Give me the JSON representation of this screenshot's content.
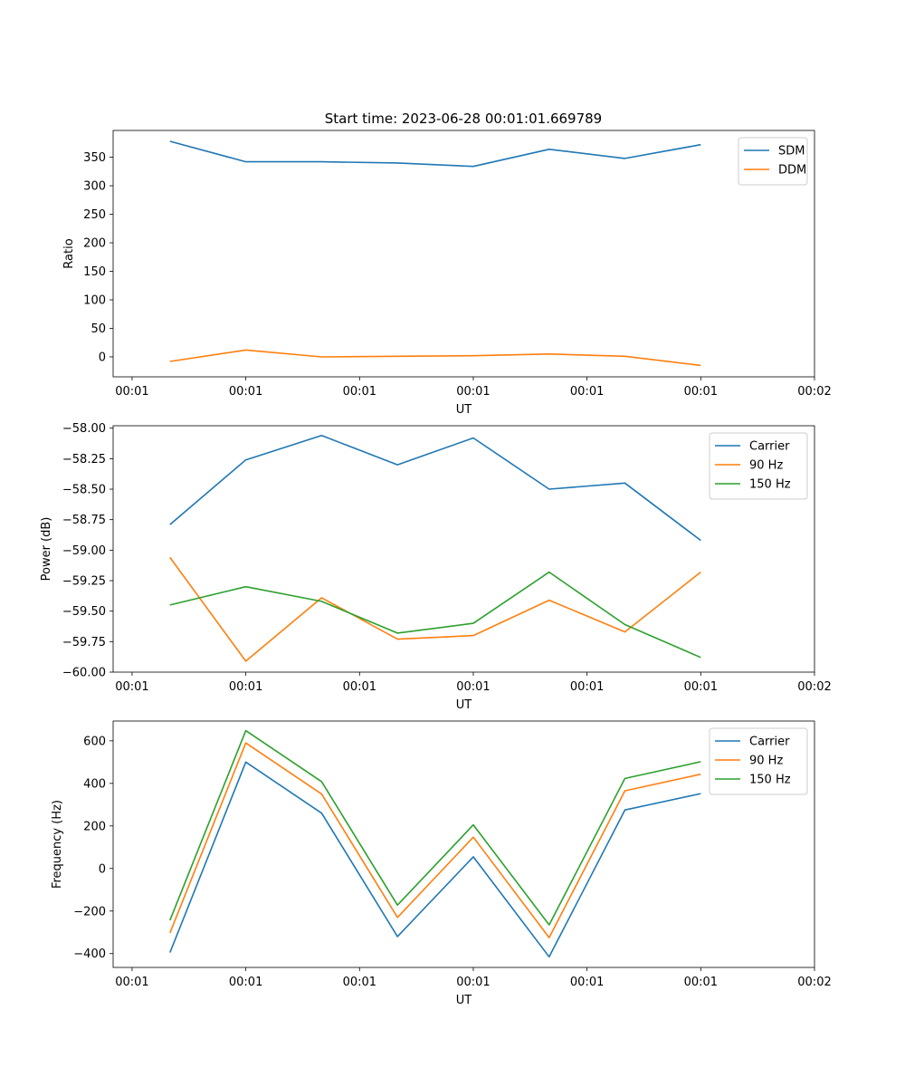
{
  "figure": {
    "title": "Start time: 2023-06-28 00:01:01.669789"
  },
  "chart_data": [
    {
      "type": "line",
      "xlabel": "UT",
      "ylabel": "Ratio",
      "x": [
        1.0,
        2.0,
        3.0,
        4.0,
        5.0,
        6.0,
        7.0,
        8.0
      ],
      "xlim": [
        0.25,
        9.5
      ],
      "xticks": [
        0.5,
        2,
        3.5,
        5,
        6.5,
        8,
        9.5
      ],
      "xtick_labels": [
        "00:01",
        "00:01",
        "00:01",
        "00:01",
        "00:01",
        "00:01",
        "00:02"
      ],
      "ylim": [
        -35,
        397
      ],
      "yticks": [
        0,
        50,
        100,
        150,
        200,
        250,
        300,
        350
      ],
      "ytick_labels": [
        "0",
        "50",
        "100",
        "150",
        "200",
        "250",
        "300",
        "350"
      ],
      "legend_position": "upper-right",
      "series": [
        {
          "name": "SDM",
          "color": "#1f77b4",
          "values": [
            378,
            342,
            342,
            340,
            334,
            364,
            348,
            372
          ]
        },
        {
          "name": "DDM",
          "color": "#ff7f0e",
          "values": [
            -8,
            12,
            0,
            1,
            2,
            5,
            1,
            -15
          ]
        }
      ]
    },
    {
      "type": "line",
      "xlabel": "UT",
      "ylabel": "Power (dB)",
      "x": [
        1.0,
        2.0,
        3.0,
        4.0,
        5.0,
        6.0,
        7.0,
        8.0
      ],
      "xlim": [
        0.25,
        9.5
      ],
      "xticks": [
        0.5,
        2,
        3.5,
        5,
        6.5,
        8,
        9.5
      ],
      "xtick_labels": [
        "00:01",
        "00:01",
        "00:01",
        "00:01",
        "00:01",
        "00:01",
        "00:02"
      ],
      "ylim": [
        -60.0,
        -57.98
      ],
      "yticks": [
        -60.0,
        -59.75,
        -59.5,
        -59.25,
        -59.0,
        -58.75,
        -58.5,
        -58.25,
        -58.0
      ],
      "ytick_labels": [
        "−60.00",
        "−59.75",
        "−59.50",
        "−59.25",
        "−59.00",
        "−58.75",
        "−58.50",
        "−58.25",
        "−58.00"
      ],
      "legend_position": "upper-right",
      "series": [
        {
          "name": "Carrier",
          "color": "#1f77b4",
          "values": [
            -58.79,
            -58.26,
            -58.06,
            -58.3,
            -58.08,
            -58.5,
            -58.45,
            -58.92
          ]
        },
        {
          "name": "90 Hz",
          "color": "#ff7f0e",
          "values": [
            -59.06,
            -59.91,
            -59.39,
            -59.73,
            -59.7,
            -59.41,
            -59.67,
            -59.18
          ]
        },
        {
          "name": "150 Hz",
          "color": "#2ca02c",
          "values": [
            -59.45,
            -59.3,
            -59.42,
            -59.68,
            -59.6,
            -59.18,
            -59.61,
            -59.88
          ]
        }
      ]
    },
    {
      "type": "line",
      "xlabel": "UT",
      "ylabel": "Frequency (Hz)",
      "x": [
        1.0,
        2.0,
        3.0,
        4.0,
        5.0,
        6.0,
        7.0,
        8.0
      ],
      "xlim": [
        0.25,
        9.5
      ],
      "xticks": [
        0.5,
        2,
        3.5,
        5,
        6.5,
        8,
        9.5
      ],
      "xtick_labels": [
        "00:01",
        "00:01",
        "00:01",
        "00:01",
        "00:01",
        "00:01",
        "00:02"
      ],
      "ylim": [
        -465,
        693
      ],
      "yticks": [
        -400,
        -200,
        0,
        200,
        400,
        600
      ],
      "ytick_labels": [
        "−400",
        "−200",
        "0",
        "200",
        "400",
        "600"
      ],
      "legend_position": "upper-right",
      "series": [
        {
          "name": "Carrier",
          "color": "#1f77b4",
          "values": [
            -395,
            500,
            260,
            -320,
            55,
            -415,
            275,
            352
          ]
        },
        {
          "name": "90 Hz",
          "color": "#ff7f0e",
          "values": [
            -303,
            590,
            350,
            -230,
            147,
            -325,
            365,
            443
          ]
        },
        {
          "name": "150 Hz",
          "color": "#2ca02c",
          "values": [
            -243,
            648,
            408,
            -172,
            205,
            -265,
            423,
            502
          ]
        }
      ]
    }
  ]
}
